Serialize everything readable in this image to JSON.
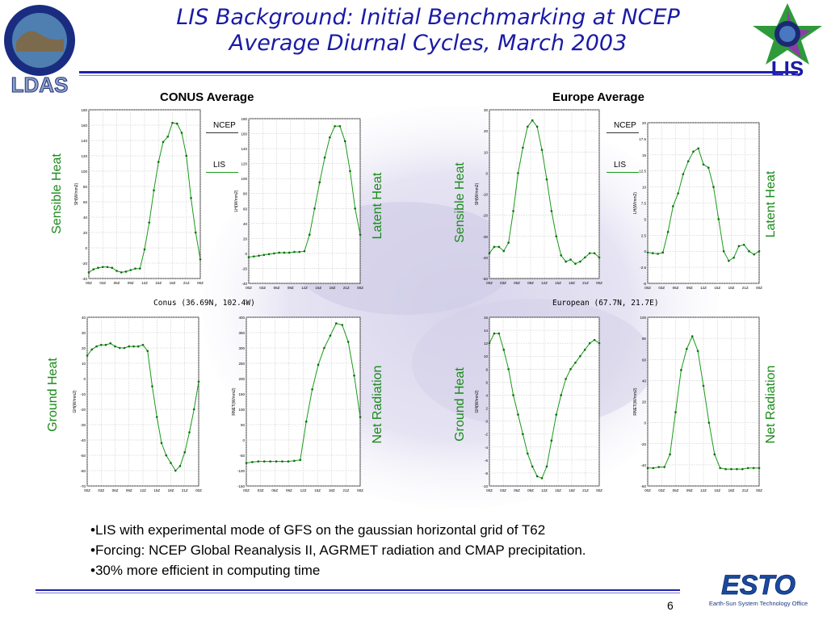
{
  "title": {
    "line1": "LIS Background:  Initial Benchmarking at NCEP",
    "line2": "Average Diurnal Cycles, March 2003"
  },
  "regions": {
    "conus": "CONUS Average",
    "europe": "Europe  Average"
  },
  "side_labels": {
    "sensible": "Sensible Heat",
    "latent": "Latent Heat",
    "ground": "Ground Heat",
    "net": "Net Radiation"
  },
  "legend": {
    "ncep": "NCEP",
    "lis": "LIS"
  },
  "locations": {
    "conus": "Conus (36.69N, 102.4W)",
    "europe": "European (67.7N, 21.7E)"
  },
  "bullets": [
    "•LIS with experimental mode of GFS on the gaussian horizontal grid of T62",
    "•Forcing: NCEP Global Reanalysis II, AGRMET radiation and CMAP precipitation.",
    "•30% more efficient in computing time"
  ],
  "page_number": "6",
  "logos": {
    "ldas": "LDAS",
    "lis": "LIS",
    "esto": "ESTO",
    "esto_sub": "Earth-Sun System Technology Office"
  },
  "colors": {
    "title": "#1a1aa6",
    "line": "#1a9a1a",
    "side_label": "#1a8a1a",
    "rule": "#2020b0"
  },
  "chart_data": [
    {
      "type": "line",
      "region": "Conus",
      "variable": "SH",
      "ylabel": "SH(W/mm2)",
      "ylim": [
        -40,
        180
      ],
      "yticks": [
        -40,
        -20,
        0,
        20,
        40,
        60,
        80,
        100,
        120,
        140,
        160,
        180
      ],
      "xticks": [
        "00Z",
        "03Z",
        "06Z",
        "09Z",
        "12Z",
        "15Z",
        "18Z",
        "21Z",
        "00Z"
      ],
      "values": [
        -32,
        -28,
        -26,
        -25,
        -25,
        -26,
        -30,
        -32,
        -31,
        -29,
        -27,
        -27,
        -2,
        33,
        75,
        112,
        138,
        145,
        163,
        162,
        150,
        120,
        65,
        20,
        -15
      ]
    },
    {
      "type": "line",
      "region": "Conus",
      "variable": "LH",
      "ylabel": "LH(W/mm2)",
      "ylim": [
        -40,
        180
      ],
      "yticks": [
        -40,
        -20,
        0,
        20,
        40,
        60,
        80,
        100,
        120,
        140,
        160,
        180
      ],
      "xticks": [
        "00Z",
        "03Z",
        "06Z",
        "09Z",
        "12Z",
        "15Z",
        "18Z",
        "21Z",
        "00Z"
      ],
      "values": [
        -5,
        -4,
        -3,
        -2,
        -1,
        0,
        1,
        1,
        1,
        2,
        2,
        3,
        25,
        60,
        95,
        128,
        155,
        170,
        170,
        150,
        110,
        60,
        25
      ]
    },
    {
      "type": "line",
      "region": "Conus",
      "variable": "GH",
      "ylabel": "GH(W/mm2)",
      "ylim": [
        -70,
        40
      ],
      "yticks": [
        -70,
        -60,
        -50,
        -40,
        -30,
        -20,
        -10,
        0,
        10,
        20,
        30,
        40
      ],
      "xticks": [
        "00Z",
        "03Z",
        "06Z",
        "09Z",
        "12Z",
        "15Z",
        "18Z",
        "21Z",
        "00Z"
      ],
      "values": [
        15,
        19,
        21,
        22,
        22,
        23,
        21,
        20,
        20,
        21,
        21,
        21,
        22,
        18,
        -5,
        -25,
        -42,
        -50,
        -55,
        -60,
        -57,
        -48,
        -35,
        -20,
        -2
      ]
    },
    {
      "type": "line",
      "region": "Conus",
      "variable": "RNET",
      "ylabel": "RNET(W/mm2)",
      "ylim": [
        -150,
        400
      ],
      "yticks": [
        -150,
        -100,
        -50,
        0,
        50,
        100,
        150,
        200,
        250,
        300,
        350,
        400
      ],
      "xticks": [
        "00Z",
        "03Z",
        "06Z",
        "09Z",
        "12Z",
        "15Z",
        "18Z",
        "21Z",
        "00Z"
      ],
      "values": [
        -75,
        -72,
        -70,
        -70,
        -70,
        -70,
        -70,
        -70,
        -68,
        -65,
        60,
        165,
        245,
        300,
        340,
        380,
        375,
        320,
        210,
        75
      ]
    },
    {
      "type": "line",
      "region": "European",
      "variable": "SH",
      "ylabel": "SH(W/mm2)",
      "ylim": [
        -50,
        30
      ],
      "yticks": [
        -50,
        -40,
        -30,
        -20,
        -10,
        0,
        10,
        20,
        30
      ],
      "xticks": [
        "00Z",
        "03Z",
        "06Z",
        "09Z",
        "12Z",
        "15Z",
        "18Z",
        "21Z",
        "00Z"
      ],
      "values": [
        -38,
        -35,
        -35,
        -37,
        -33,
        -18,
        0,
        12,
        22,
        25,
        22,
        11,
        -3,
        -18,
        -30,
        -39,
        -42,
        -41,
        -43,
        -42,
        -40,
        -38,
        -38,
        -40
      ]
    },
    {
      "type": "line",
      "region": "European",
      "variable": "LH",
      "ylabel": "LH(W/mm2)",
      "ylim": [
        -5,
        20
      ],
      "yticks": [
        -5,
        -2.5,
        0,
        2.5,
        5,
        7.5,
        10,
        12.5,
        15,
        17.5,
        20
      ],
      "xticks": [
        "00Z",
        "03Z",
        "06Z",
        "09Z",
        "12Z",
        "15Z",
        "18Z",
        "21Z",
        "00Z"
      ],
      "values": [
        -0.2,
        -0.3,
        -0.4,
        -0.2,
        3,
        7,
        9,
        12,
        14,
        15.5,
        16,
        13.5,
        13,
        10,
        5,
        0,
        -1.5,
        -1,
        0.8,
        1,
        0,
        -0.5,
        0
      ]
    },
    {
      "type": "line",
      "region": "European",
      "variable": "GH",
      "ylabel": "GH(W/mm2)",
      "ylim": [
        -10,
        16
      ],
      "yticks": [
        -10,
        -8,
        -6,
        -4,
        -2,
        0,
        2,
        4,
        6,
        8,
        10,
        12,
        14,
        16
      ],
      "xticks": [
        "00Z",
        "03Z",
        "06Z",
        "09Z",
        "12Z",
        "15Z",
        "18Z",
        "21Z",
        "00Z"
      ],
      "values": [
        12,
        13.5,
        13.5,
        11,
        8,
        4,
        1,
        -2,
        -5,
        -7,
        -8.5,
        -8.8,
        -7,
        -3,
        1,
        4,
        6.5,
        8,
        9,
        10,
        11,
        12,
        12.5,
        12
      ]
    },
    {
      "type": "line",
      "region": "European",
      "variable": "RNET",
      "ylabel": "RNET(W/mm2)",
      "ylim": [
        -60,
        100
      ],
      "yticks": [
        -60,
        -40,
        -20,
        0,
        20,
        40,
        60,
        80,
        100
      ],
      "xticks": [
        "00Z",
        "03Z",
        "06Z",
        "09Z",
        "12Z",
        "15Z",
        "18Z",
        "21Z",
        "00Z"
      ],
      "values": [
        -43,
        -43,
        -42,
        -42,
        -30,
        10,
        50,
        70,
        82,
        68,
        35,
        0,
        -30,
        -43,
        -44,
        -44,
        -44,
        -44,
        -43,
        -43,
        -43
      ]
    }
  ]
}
